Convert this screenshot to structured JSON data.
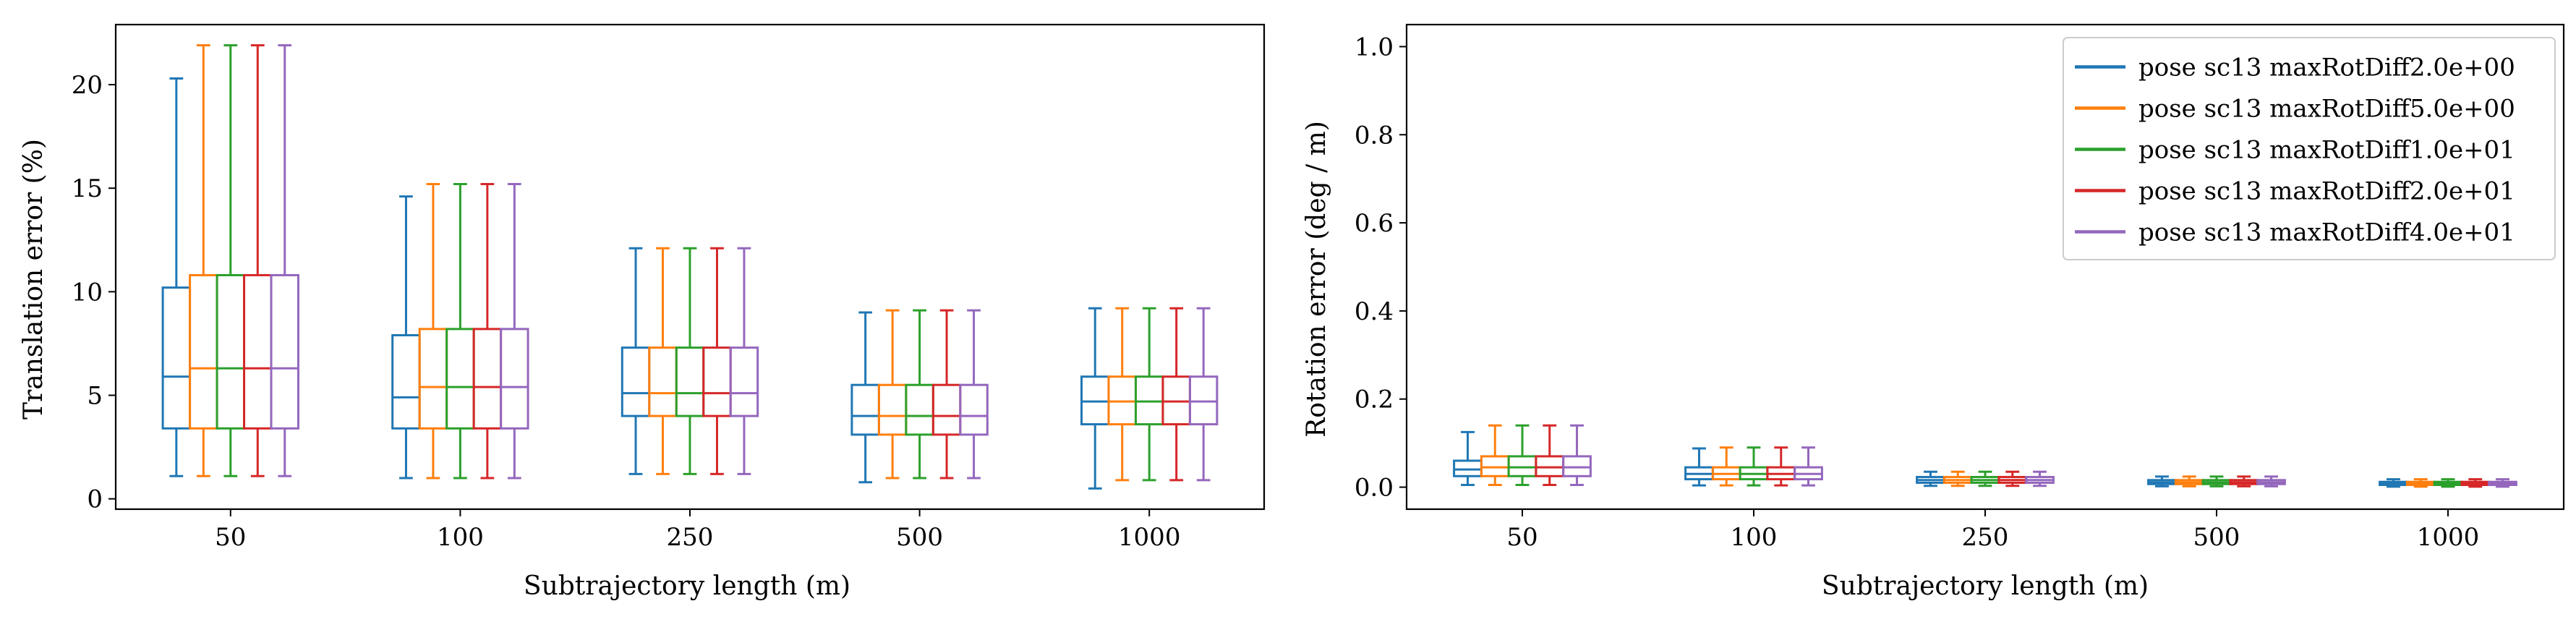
{
  "chart_data": [
    {
      "type": "box",
      "xlabel": "Subtrajectory length (m)",
      "ylabel": "Translation error (%)",
      "ylim": [
        -0.5,
        22.9
      ],
      "yticks": [
        0,
        5,
        10,
        15,
        20
      ],
      "categories": [
        "50",
        "100",
        "250",
        "500",
        "1000"
      ],
      "grid": false,
      "series": [
        {
          "name": "pose sc13 maxRotDiff2.0e+00",
          "color": "#1f77b4",
          "boxes": [
            {
              "whislo": 1.1,
              "q1": 3.4,
              "med": 5.9,
              "q3": 10.2,
              "whishi": 20.3
            },
            {
              "whislo": 1.0,
              "q1": 3.4,
              "med": 4.9,
              "q3": 7.9,
              "whishi": 14.6
            },
            {
              "whislo": 1.2,
              "q1": 4.0,
              "med": 5.1,
              "q3": 7.3,
              "whishi": 12.1
            },
            {
              "whislo": 0.8,
              "q1": 3.1,
              "med": 4.0,
              "q3": 5.5,
              "whishi": 9.0
            },
            {
              "whislo": 0.5,
              "q1": 3.6,
              "med": 4.7,
              "q3": 5.9,
              "whishi": 9.2
            }
          ]
        },
        {
          "name": "pose sc13 maxRotDiff5.0e+00",
          "color": "#ff7f0e",
          "boxes": [
            {
              "whislo": 1.1,
              "q1": 3.4,
              "med": 6.3,
              "q3": 10.8,
              "whishi": 21.9
            },
            {
              "whislo": 1.0,
              "q1": 3.4,
              "med": 5.4,
              "q3": 8.2,
              "whishi": 15.2
            },
            {
              "whislo": 1.2,
              "q1": 4.0,
              "med": 5.1,
              "q3": 7.3,
              "whishi": 12.1
            },
            {
              "whislo": 1.0,
              "q1": 3.1,
              "med": 4.0,
              "q3": 5.5,
              "whishi": 9.1
            },
            {
              "whislo": 0.9,
              "q1": 3.6,
              "med": 4.7,
              "q3": 5.9,
              "whishi": 9.2
            }
          ]
        },
        {
          "name": "pose sc13 maxRotDiff1.0e+01",
          "color": "#2ca02c",
          "boxes": [
            {
              "whislo": 1.1,
              "q1": 3.4,
              "med": 6.3,
              "q3": 10.8,
              "whishi": 21.9
            },
            {
              "whislo": 1.0,
              "q1": 3.4,
              "med": 5.4,
              "q3": 8.2,
              "whishi": 15.2
            },
            {
              "whislo": 1.2,
              "q1": 4.0,
              "med": 5.1,
              "q3": 7.3,
              "whishi": 12.1
            },
            {
              "whislo": 1.0,
              "q1": 3.1,
              "med": 4.0,
              "q3": 5.5,
              "whishi": 9.1
            },
            {
              "whislo": 0.9,
              "q1": 3.6,
              "med": 4.7,
              "q3": 5.9,
              "whishi": 9.2
            }
          ]
        },
        {
          "name": "pose sc13 maxRotDiff2.0e+01",
          "color": "#d62728",
          "boxes": [
            {
              "whislo": 1.1,
              "q1": 3.4,
              "med": 6.3,
              "q3": 10.8,
              "whishi": 21.9
            },
            {
              "whislo": 1.0,
              "q1": 3.4,
              "med": 5.4,
              "q3": 8.2,
              "whishi": 15.2
            },
            {
              "whislo": 1.2,
              "q1": 4.0,
              "med": 5.1,
              "q3": 7.3,
              "whishi": 12.1
            },
            {
              "whislo": 1.0,
              "q1": 3.1,
              "med": 4.0,
              "q3": 5.5,
              "whishi": 9.1
            },
            {
              "whislo": 0.9,
              "q1": 3.6,
              "med": 4.7,
              "q3": 5.9,
              "whishi": 9.2
            }
          ]
        },
        {
          "name": "pose sc13 maxRotDiff4.0e+01",
          "color": "#9467bd",
          "boxes": [
            {
              "whislo": 1.1,
              "q1": 3.4,
              "med": 6.3,
              "q3": 10.8,
              "whishi": 21.9
            },
            {
              "whislo": 1.0,
              "q1": 3.4,
              "med": 5.4,
              "q3": 8.2,
              "whishi": 15.2
            },
            {
              "whislo": 1.2,
              "q1": 4.0,
              "med": 5.1,
              "q3": 7.3,
              "whishi": 12.1
            },
            {
              "whislo": 1.0,
              "q1": 3.1,
              "med": 4.0,
              "q3": 5.5,
              "whishi": 9.1
            },
            {
              "whislo": 0.9,
              "q1": 3.6,
              "med": 4.7,
              "q3": 5.9,
              "whishi": 9.2
            }
          ]
        }
      ]
    },
    {
      "type": "box",
      "xlabel": "Subtrajectory length (m)",
      "ylabel": "Rotation error (deg / m)",
      "ylim": [
        -0.05,
        1.05
      ],
      "yticks": [
        0.0,
        0.2,
        0.4,
        0.6,
        0.8,
        1.0
      ],
      "ytick_labels": [
        "0.0",
        "0.2",
        "0.4",
        "0.6",
        "0.8",
        "1.0"
      ],
      "categories": [
        "50",
        "100",
        "250",
        "500",
        "1000"
      ],
      "grid": false,
      "legend": "top-right",
      "series": [
        {
          "name": "pose sc13 maxRotDiff2.0e+00",
          "color": "#1f77b4",
          "boxes": [
            {
              "whislo": 0.005,
              "q1": 0.025,
              "med": 0.04,
              "q3": 0.06,
              "whishi": 0.125
            },
            {
              "whislo": 0.004,
              "q1": 0.018,
              "med": 0.03,
              "q3": 0.045,
              "whishi": 0.088
            },
            {
              "whislo": 0.003,
              "q1": 0.01,
              "med": 0.016,
              "q3": 0.023,
              "whishi": 0.035
            },
            {
              "whislo": 0.002,
              "q1": 0.007,
              "med": 0.011,
              "q3": 0.016,
              "whishi": 0.024
            },
            {
              "whislo": 0.001,
              "q1": 0.005,
              "med": 0.008,
              "q3": 0.012,
              "whishi": 0.018
            }
          ]
        },
        {
          "name": "pose sc13 maxRotDiff5.0e+00",
          "color": "#ff7f0e",
          "boxes": [
            {
              "whislo": 0.005,
              "q1": 0.025,
              "med": 0.045,
              "q3": 0.07,
              "whishi": 0.14
            },
            {
              "whislo": 0.004,
              "q1": 0.018,
              "med": 0.03,
              "q3": 0.045,
              "whishi": 0.09
            },
            {
              "whislo": 0.003,
              "q1": 0.01,
              "med": 0.016,
              "q3": 0.023,
              "whishi": 0.035
            },
            {
              "whislo": 0.002,
              "q1": 0.007,
              "med": 0.011,
              "q3": 0.016,
              "whishi": 0.024
            },
            {
              "whislo": 0.001,
              "q1": 0.005,
              "med": 0.008,
              "q3": 0.012,
              "whishi": 0.018
            }
          ]
        },
        {
          "name": "pose sc13 maxRotDiff1.0e+01",
          "color": "#2ca02c",
          "boxes": [
            {
              "whislo": 0.005,
              "q1": 0.025,
              "med": 0.045,
              "q3": 0.07,
              "whishi": 0.14
            },
            {
              "whislo": 0.004,
              "q1": 0.018,
              "med": 0.03,
              "q3": 0.045,
              "whishi": 0.09
            },
            {
              "whislo": 0.003,
              "q1": 0.01,
              "med": 0.016,
              "q3": 0.023,
              "whishi": 0.035
            },
            {
              "whislo": 0.002,
              "q1": 0.007,
              "med": 0.011,
              "q3": 0.016,
              "whishi": 0.024
            },
            {
              "whislo": 0.001,
              "q1": 0.005,
              "med": 0.008,
              "q3": 0.012,
              "whishi": 0.018
            }
          ]
        },
        {
          "name": "pose sc13 maxRotDiff2.0e+01",
          "color": "#d62728",
          "boxes": [
            {
              "whislo": 0.005,
              "q1": 0.025,
              "med": 0.045,
              "q3": 0.07,
              "whishi": 0.14
            },
            {
              "whislo": 0.004,
              "q1": 0.018,
              "med": 0.03,
              "q3": 0.045,
              "whishi": 0.09
            },
            {
              "whislo": 0.003,
              "q1": 0.01,
              "med": 0.016,
              "q3": 0.023,
              "whishi": 0.035
            },
            {
              "whislo": 0.002,
              "q1": 0.007,
              "med": 0.011,
              "q3": 0.016,
              "whishi": 0.024
            },
            {
              "whislo": 0.001,
              "q1": 0.005,
              "med": 0.008,
              "q3": 0.012,
              "whishi": 0.018
            }
          ]
        },
        {
          "name": "pose sc13 maxRotDiff4.0e+01",
          "color": "#9467bd",
          "boxes": [
            {
              "whislo": 0.005,
              "q1": 0.025,
              "med": 0.045,
              "q3": 0.07,
              "whishi": 0.14
            },
            {
              "whislo": 0.004,
              "q1": 0.018,
              "med": 0.03,
              "q3": 0.045,
              "whishi": 0.09
            },
            {
              "whislo": 0.003,
              "q1": 0.01,
              "med": 0.016,
              "q3": 0.023,
              "whishi": 0.035
            },
            {
              "whislo": 0.002,
              "q1": 0.007,
              "med": 0.011,
              "q3": 0.016,
              "whishi": 0.024
            },
            {
              "whislo": 0.001,
              "q1": 0.005,
              "med": 0.008,
              "q3": 0.012,
              "whishi": 0.018
            }
          ]
        }
      ]
    }
  ]
}
